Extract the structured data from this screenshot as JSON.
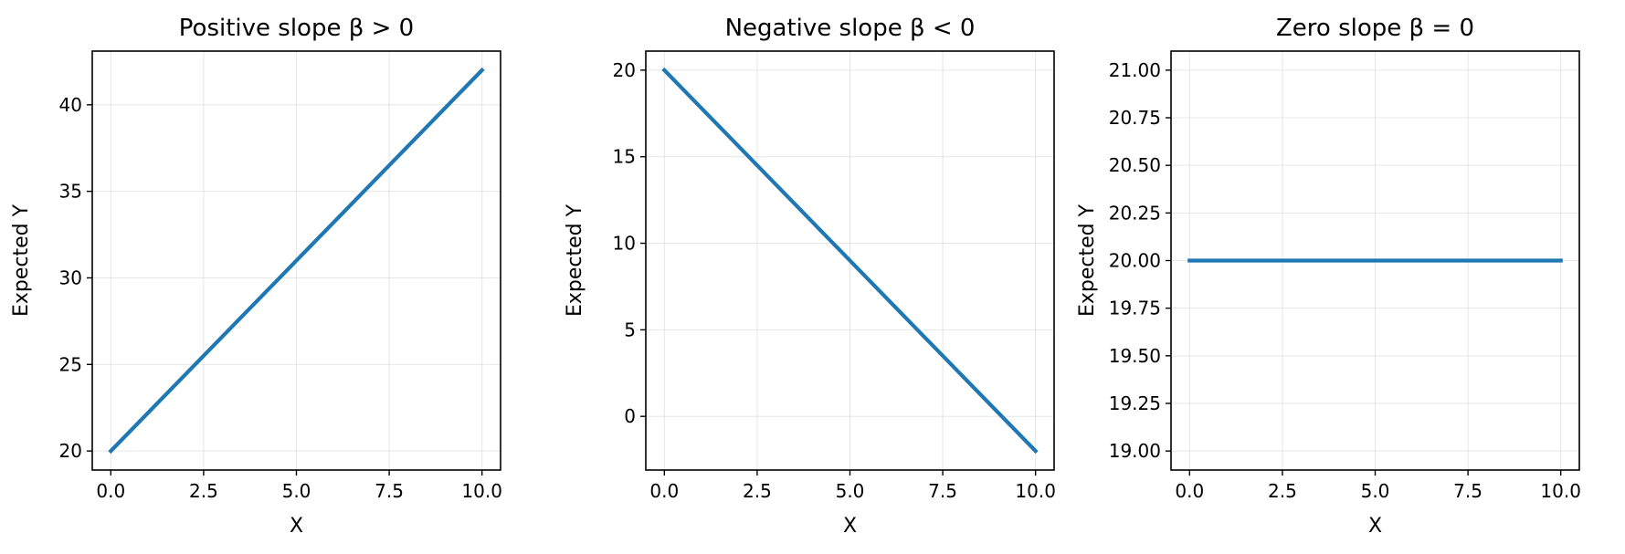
{
  "chart_data": [
    {
      "type": "line",
      "title": "Positive slope β > 0",
      "xlabel": "X",
      "ylabel": "Expected Y",
      "xlim": [
        -0.5,
        10.5
      ],
      "ylim": [
        18.9,
        43.1
      ],
      "xticks": [
        0.0,
        2.5,
        5.0,
        7.5,
        10.0
      ],
      "xtick_labels": [
        "0.0",
        "2.5",
        "5.0",
        "7.5",
        "10.0"
      ],
      "yticks": [
        20,
        25,
        30,
        35,
        40
      ],
      "ytick_labels": [
        "20",
        "25",
        "30",
        "35",
        "40"
      ],
      "grid": true,
      "series": [
        {
          "color": "#1f77b4",
          "x": [
            0,
            10
          ],
          "y": [
            20,
            42
          ]
        }
      ]
    },
    {
      "type": "line",
      "title": "Negative slope β < 0",
      "xlabel": "X",
      "ylabel": "Expected Y",
      "xlim": [
        -0.5,
        10.5
      ],
      "ylim": [
        -3.1,
        21.1
      ],
      "xticks": [
        0.0,
        2.5,
        5.0,
        7.5,
        10.0
      ],
      "xtick_labels": [
        "0.0",
        "2.5",
        "5.0",
        "7.5",
        "10.0"
      ],
      "yticks": [
        0,
        5,
        10,
        15,
        20
      ],
      "ytick_labels": [
        "0",
        "5",
        "10",
        "15",
        "20"
      ],
      "grid": true,
      "series": [
        {
          "color": "#1f77b4",
          "x": [
            0,
            10
          ],
          "y": [
            20,
            -2
          ]
        }
      ]
    },
    {
      "type": "line",
      "title": "Zero slope β = 0",
      "xlabel": "X",
      "ylabel": "Expected Y",
      "xlim": [
        -0.5,
        10.5
      ],
      "ylim": [
        18.9,
        21.1
      ],
      "xticks": [
        0.0,
        2.5,
        5.0,
        7.5,
        10.0
      ],
      "xtick_labels": [
        "0.0",
        "2.5",
        "5.0",
        "7.5",
        "10.0"
      ],
      "yticks": [
        19.0,
        19.25,
        19.5,
        19.75,
        20.0,
        20.25,
        20.5,
        20.75,
        21.0
      ],
      "ytick_labels": [
        "19.00",
        "19.25",
        "19.50",
        "19.75",
        "20.00",
        "20.25",
        "20.50",
        "20.75",
        "21.00"
      ],
      "grid": true,
      "series": [
        {
          "color": "#1f77b4",
          "x": [
            0,
            10
          ],
          "y": [
            20,
            20
          ]
        }
      ]
    }
  ]
}
